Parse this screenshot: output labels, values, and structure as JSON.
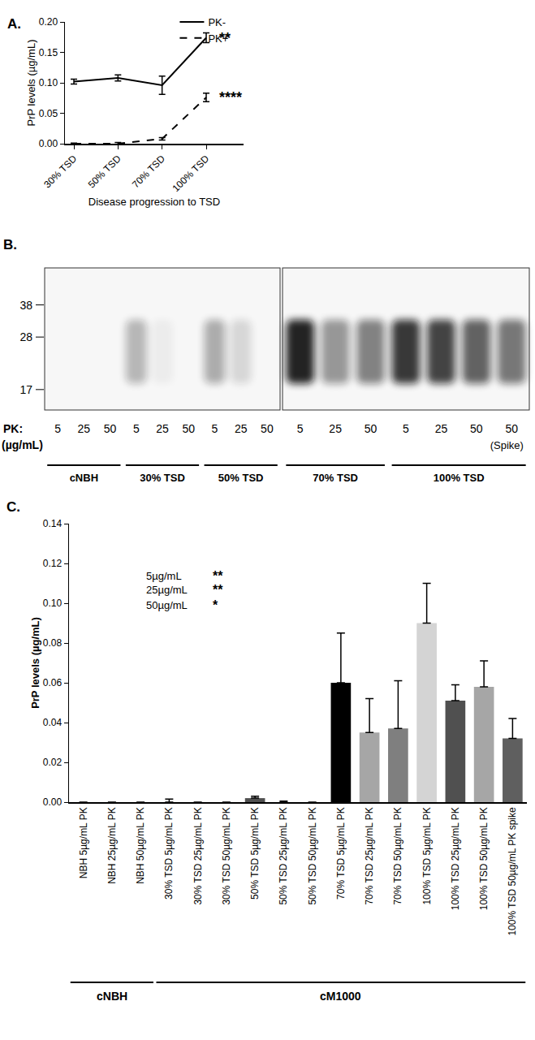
{
  "chart_data": [
    {
      "panel": "A.",
      "type": "line",
      "categories": [
        "30% TSD",
        "50% TSD",
        "70% TSD",
        "100% TSD"
      ],
      "x_label": "Disease progression to TSD",
      "y_label": "PrP levels (µg/mL)",
      "ylim": [
        0,
        0.2
      ],
      "yticks": [
        {
          "value": 0,
          "label": "0.00"
        },
        {
          "value": 0.05,
          "label": "0.05"
        },
        {
          "value": 0.1,
          "label": "0.10"
        },
        {
          "value": 0.15,
          "label": "0.15"
        },
        {
          "value": 0.2,
          "label": "0.20"
        }
      ],
      "legend": "top",
      "series": [
        {
          "name": "PK-",
          "color": "#000000",
          "line_style": "solid",
          "values": [
            0.102,
            0.108,
            0.096,
            0.174
          ],
          "error": [
            0.004,
            0.005,
            0.015,
            0.008
          ],
          "significance": "**"
        },
        {
          "name": "PK+",
          "color": "#000000",
          "line_style": "dashed",
          "values": [
            0.0,
            0.0,
            0.008,
            0.076
          ],
          "error": [
            0.001,
            0.002,
            0.002,
            0.007
          ],
          "significance": "****"
        }
      ]
    },
    {
      "panel": "B.",
      "type": "blot",
      "row_label": "PK:",
      "row_unit": "(µg/mL)",
      "log": "y",
      "ylim": [
        14,
        54
      ],
      "yticks": [
        38,
        28,
        17
      ],
      "band_kda": [
        18,
        33
      ],
      "lanes": [
        {
          "pk": 5,
          "group": "cNBH",
          "box": 1,
          "intensity": 0
        },
        {
          "pk": 25,
          "group": "cNBH",
          "box": 1,
          "intensity": 0
        },
        {
          "pk": 50,
          "group": "cNBH",
          "box": 1,
          "intensity": 0
        },
        {
          "pk": 5,
          "group": "30% TSD",
          "box": 1,
          "intensity": 0.3
        },
        {
          "pk": 25,
          "group": "30% TSD",
          "box": 1,
          "intensity": 0.05
        },
        {
          "pk": 50,
          "group": "30% TSD",
          "box": 1,
          "intensity": 0
        },
        {
          "pk": 5,
          "group": "50% TSD",
          "box": 1,
          "intensity": 0.35
        },
        {
          "pk": 25,
          "group": "50% TSD",
          "box": 1,
          "intensity": 0.15
        },
        {
          "pk": 50,
          "group": "50% TSD",
          "box": 1,
          "intensity": 0
        },
        {
          "pk": 5,
          "group": "70% TSD",
          "box": 2,
          "intensity": 1.0
        },
        {
          "pk": 25,
          "group": "70% TSD",
          "box": 2,
          "intensity": 0.45
        },
        {
          "pk": 50,
          "group": "70% TSD",
          "box": 2,
          "intensity": 0.55
        },
        {
          "pk": 5,
          "group": "100% TSD",
          "box": 2,
          "intensity": 0.9
        },
        {
          "pk": 25,
          "group": "100% TSD",
          "box": 2,
          "intensity": 0.85
        },
        {
          "pk": 50,
          "group": "100% TSD",
          "box": 2,
          "intensity": 0.7
        },
        {
          "pk": 50,
          "group": "100% TSD",
          "box": 2,
          "intensity": 0.6,
          "note": "(Spike)"
        }
      ]
    },
    {
      "panel": "C.",
      "type": "bar",
      "categories": [
        "NBH 5µg/mL PK",
        "NBH 25µg/mL PK",
        "NBH 50µg/mL PK",
        "30% TSD 5µg/mL PK",
        "30% TSD 25µg/mL PK",
        "30% TSD 50µg/mL PK",
        "50% TSD 5µg/mL PK",
        "50% TSD 25µg/mL PK",
        "50% TSD 50µg/mL PK",
        "70% TSD 5µg/mL PK",
        "70% TSD 25µg/mL PK",
        "70% TSD 50µg/mL PK",
        "100% TSD 5µg/mL PK",
        "100% TSD 25µg/mL PK",
        "100% TSD 50µg/mL PK",
        "100% TSD 50µg/mL PK spike"
      ],
      "values": [
        0,
        0,
        0,
        0,
        0,
        0,
        0.002,
        0,
        0,
        0.06,
        0.035,
        0.037,
        0.09,
        0.051,
        0.058,
        0.032
      ],
      "error": [
        0,
        0,
        0,
        0.0015,
        0,
        0,
        0.001,
        0.0005,
        0,
        0.025,
        0.017,
        0.024,
        0.02,
        0.008,
        0.013,
        0.01
      ],
      "colors": [
        "#808080",
        "#808080",
        "#808080",
        "#000000",
        "#a6a6a6",
        "#7f7f7f",
        "#505050",
        "#a6a6a6",
        "#7f7f7f",
        "#000000",
        "#a6a6a6",
        "#7f7f7f",
        "#d4d4d4",
        "#505050",
        "#a6a6a6",
        "#5f5f5f"
      ],
      "y_label": "PrP levels (µg/mL)",
      "ylim": [
        0,
        0.14
      ],
      "yticks": [
        {
          "value": 0,
          "label": "0.00"
        },
        {
          "value": 0.02,
          "label": "0.02"
        },
        {
          "value": 0.04,
          "label": "0.04"
        },
        {
          "value": 0.06,
          "label": "0.06"
        },
        {
          "value": 0.08,
          "label": "0.08"
        },
        {
          "value": 0.1,
          "label": "0.10"
        },
        {
          "value": 0.12,
          "label": "0.12"
        },
        {
          "value": 0.14,
          "label": "0.14"
        }
      ],
      "significance": [
        {
          "label": "5µg/mL",
          "mark": "**"
        },
        {
          "label": "25µg/mL",
          "mark": "**"
        },
        {
          "label": "50µg/mL",
          "mark": "*"
        }
      ],
      "groups": [
        {
          "label": "cNBH",
          "from": "NBH 5µg/mL PK",
          "to": "NBH 50µg/mL PK"
        },
        {
          "label": "cM1000",
          "from": "30% TSD 5µg/mL PK",
          "to": "100% TSD 50µg/mL PK spike"
        }
      ]
    }
  ]
}
